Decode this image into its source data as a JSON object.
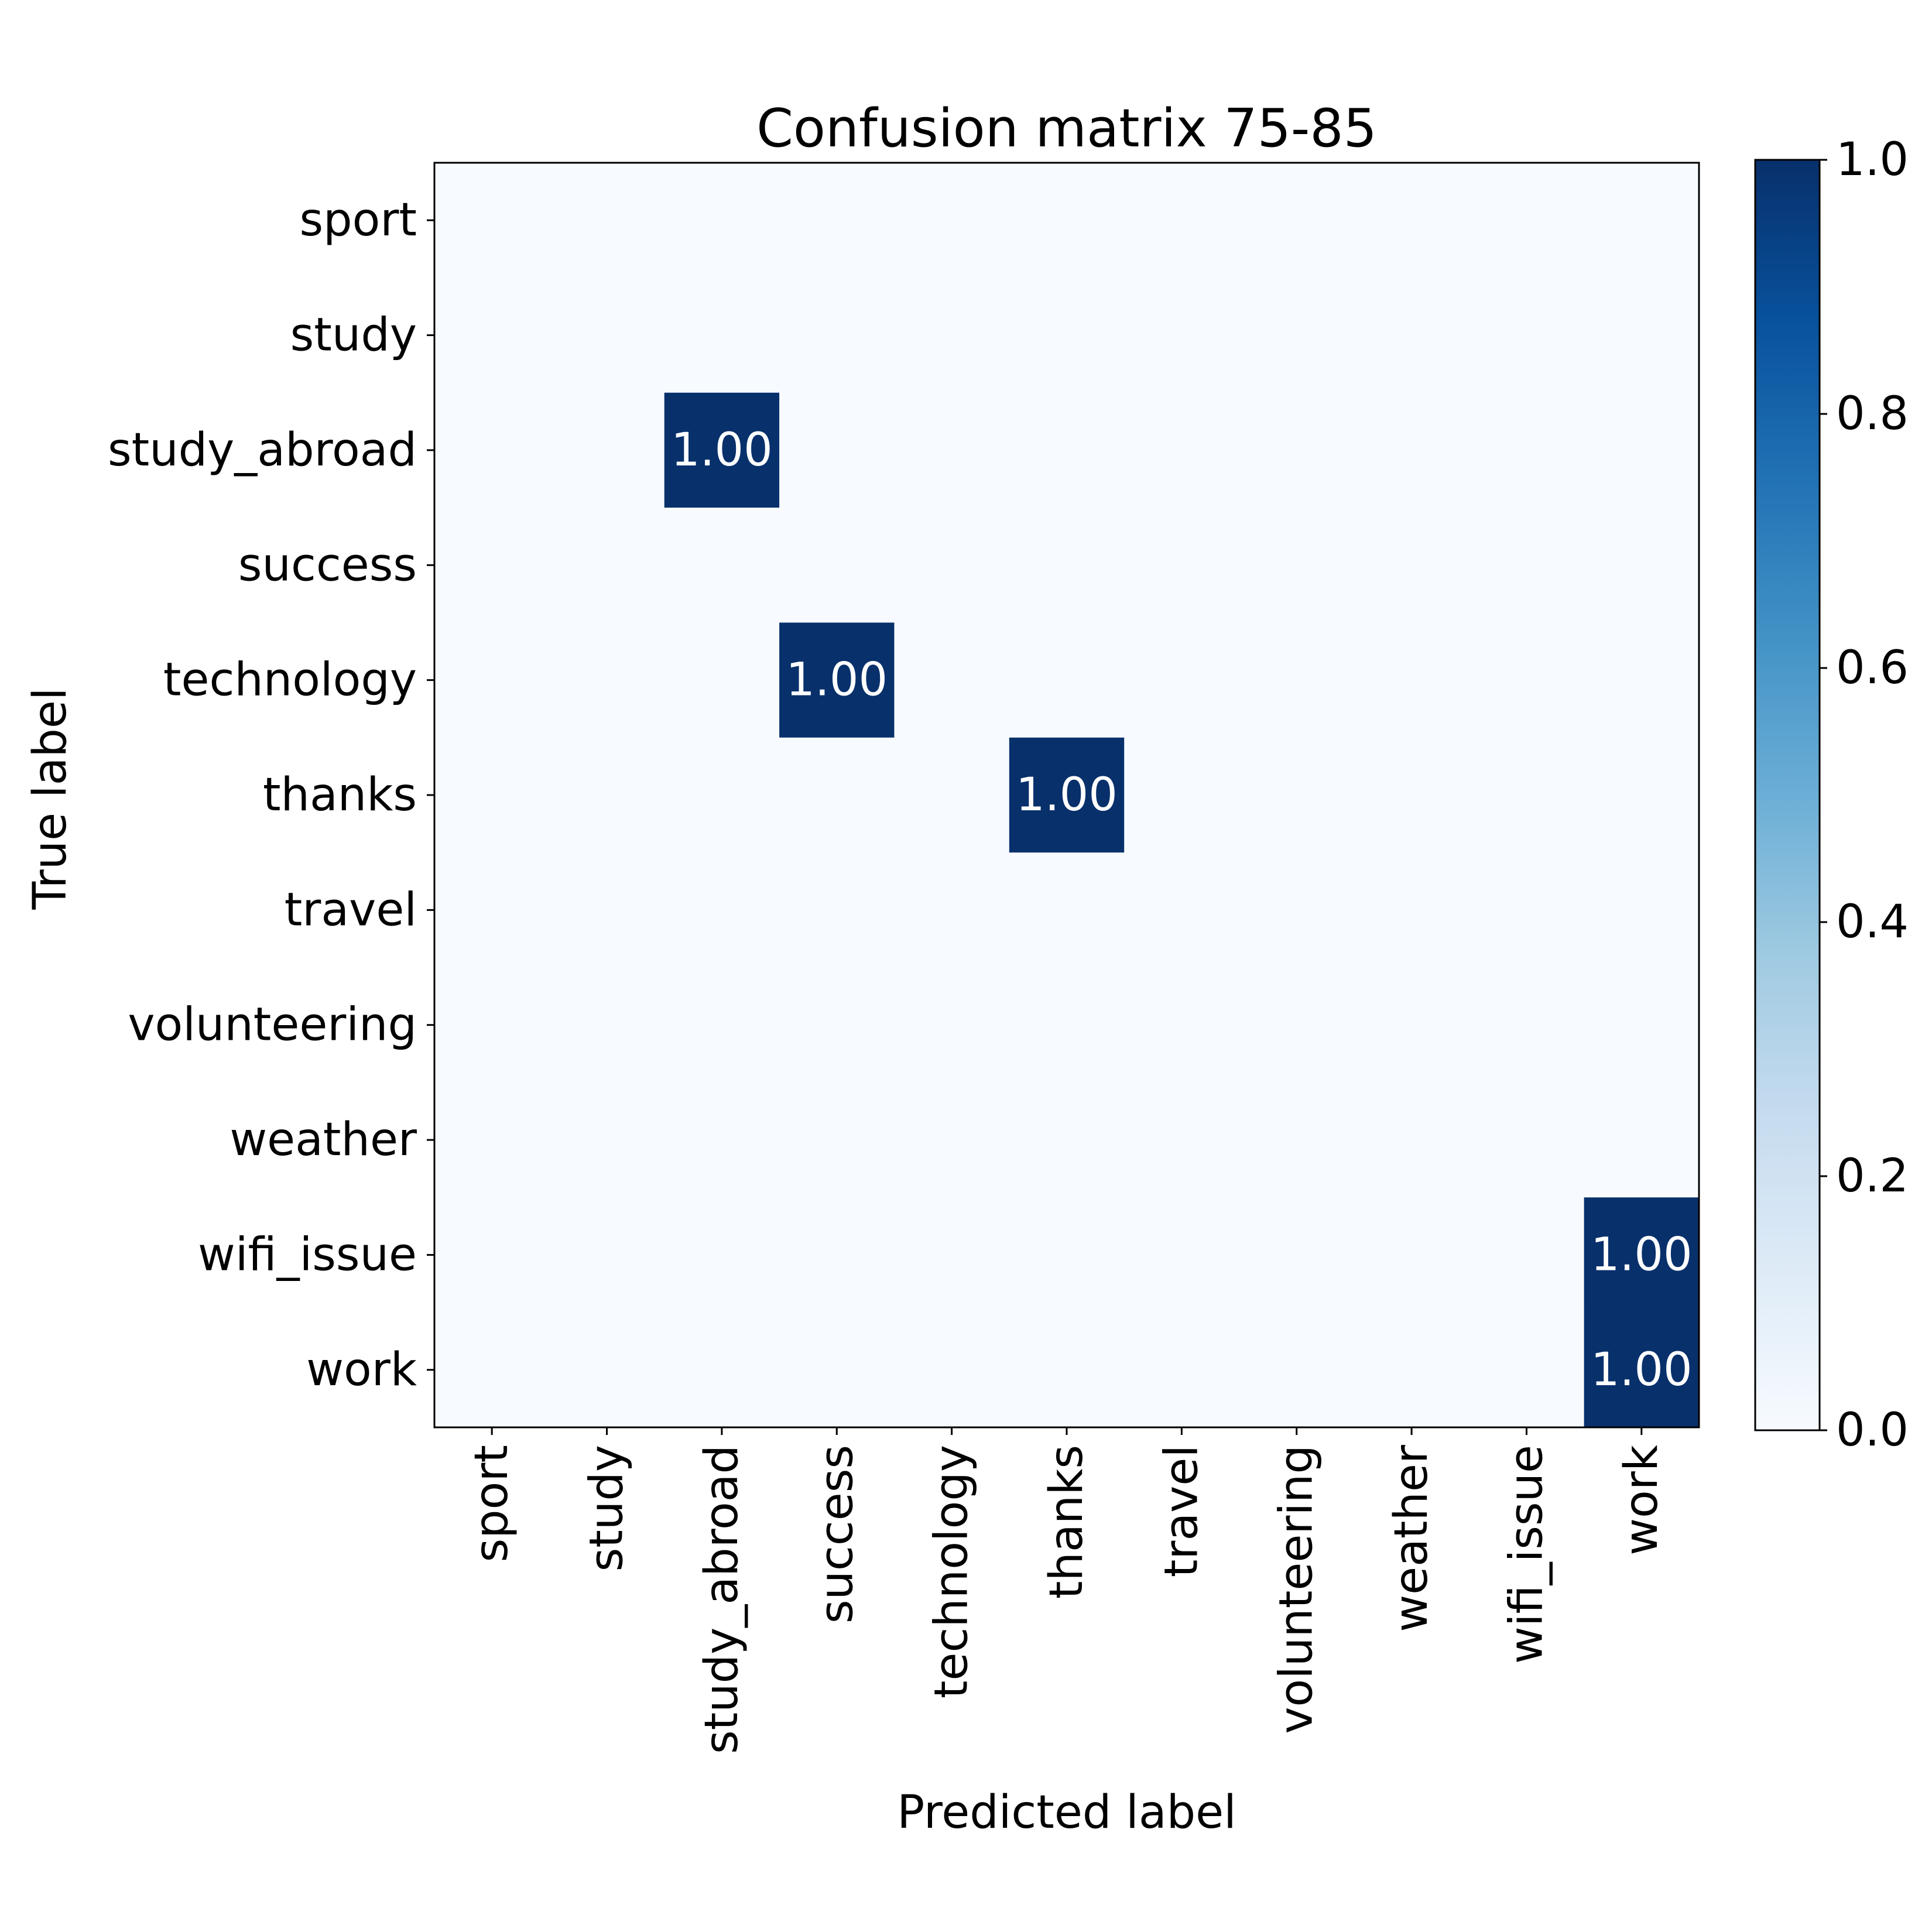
{
  "chart_data": {
    "type": "heatmap",
    "title": "Confusion matrix 75-85",
    "xlabel": "Predicted label",
    "ylabel": "True label",
    "x_categories": [
      "sport",
      "study",
      "study_abroad",
      "success",
      "technology",
      "thanks",
      "travel",
      "volunteering",
      "weather",
      "wifi_issue",
      "work"
    ],
    "y_categories": [
      "sport",
      "study",
      "study_abroad",
      "success",
      "technology",
      "thanks",
      "travel",
      "volunteering",
      "weather",
      "wifi_issue",
      "work"
    ],
    "values": [
      [
        0,
        0,
        0,
        0,
        0,
        0,
        0,
        0,
        0,
        0,
        0
      ],
      [
        0,
        0,
        0,
        0,
        0,
        0,
        0,
        0,
        0,
        0,
        0
      ],
      [
        0,
        0,
        1,
        0,
        0,
        0,
        0,
        0,
        0,
        0,
        0
      ],
      [
        0,
        0,
        0,
        0,
        0,
        0,
        0,
        0,
        0,
        0,
        0
      ],
      [
        0,
        0,
        0,
        1,
        0,
        0,
        0,
        0,
        0,
        0,
        0
      ],
      [
        0,
        0,
        0,
        0,
        0,
        1,
        0,
        0,
        0,
        0,
        0
      ],
      [
        0,
        0,
        0,
        0,
        0,
        0,
        0,
        0,
        0,
        0,
        0
      ],
      [
        0,
        0,
        0,
        0,
        0,
        0,
        0,
        0,
        0,
        0,
        0
      ],
      [
        0,
        0,
        0,
        0,
        0,
        0,
        0,
        0,
        0,
        0,
        0
      ],
      [
        0,
        0,
        0,
        0,
        0,
        0,
        0,
        0,
        0,
        0,
        1
      ],
      [
        0,
        0,
        0,
        0,
        0,
        0,
        0,
        0,
        0,
        0,
        1
      ]
    ],
    "cell_labels": [
      {
        "row": 2,
        "col": 2,
        "text": "1.00"
      },
      {
        "row": 4,
        "col": 3,
        "text": "1.00"
      },
      {
        "row": 5,
        "col": 5,
        "text": "1.00"
      },
      {
        "row": 9,
        "col": 10,
        "text": "1.00"
      },
      {
        "row": 10,
        "col": 10,
        "text": "1.00"
      }
    ],
    "colorbar": {
      "range": [
        0.0,
        1.0
      ],
      "ticks": [
        "0.0",
        "0.2",
        "0.4",
        "0.6",
        "0.8",
        "1.0"
      ],
      "colormap": "Blues",
      "low_color": "#f7fbff",
      "high_color": "#08306b"
    },
    "grid": false
  }
}
